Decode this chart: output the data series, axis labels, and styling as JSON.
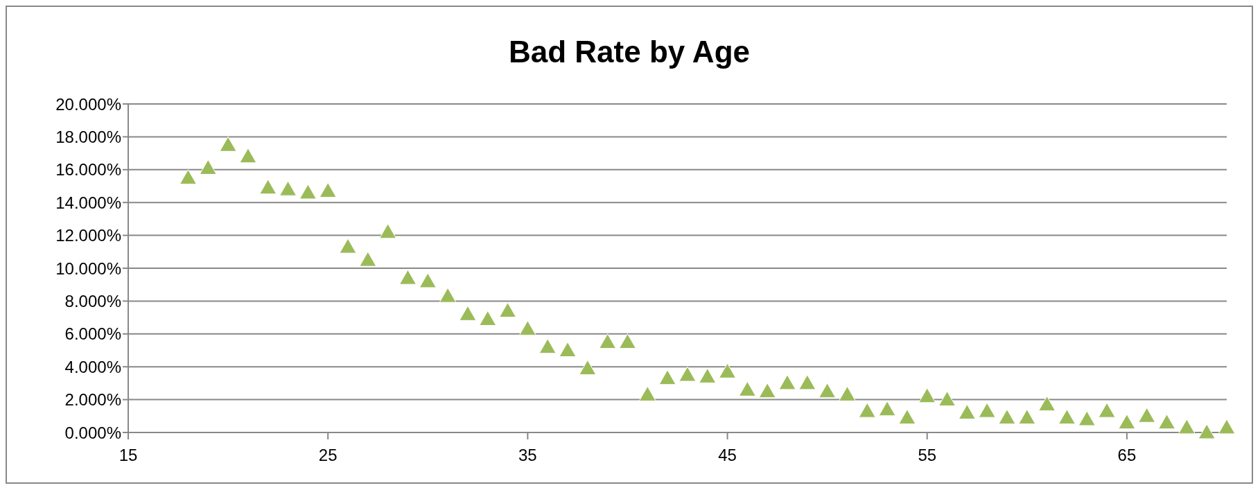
{
  "chart_data": {
    "type": "scatter",
    "title": "Bad Rate by Age",
    "x": [
      18,
      19,
      20,
      21,
      22,
      23,
      24,
      25,
      26,
      27,
      28,
      29,
      30,
      31,
      32,
      33,
      34,
      35,
      36,
      37,
      38,
      39,
      40,
      41,
      42,
      43,
      44,
      45,
      46,
      47,
      48,
      49,
      50,
      51,
      52,
      53,
      54,
      55,
      56,
      57,
      58,
      59,
      60,
      61,
      62,
      63,
      64,
      65,
      66,
      67,
      68,
      69,
      70
    ],
    "series": [
      {
        "color": "#9bbb59",
        "values": [
          15.5,
          16.1,
          17.5,
          16.8,
          14.9,
          14.8,
          14.6,
          14.7,
          11.3,
          10.5,
          12.2,
          9.4,
          9.2,
          8.3,
          7.2,
          6.9,
          7.4,
          6.3,
          5.2,
          5.0,
          3.9,
          5.5,
          5.5,
          2.3,
          3.3,
          3.5,
          3.4,
          3.7,
          2.6,
          2.5,
          3.0,
          3.0,
          2.5,
          2.3,
          1.3,
          1.4,
          0.9,
          2.2,
          2.0,
          1.2,
          1.3,
          0.9,
          0.9,
          1.7,
          0.9,
          0.8,
          1.3,
          0.6,
          1.0,
          0.6,
          0.3,
          0.0,
          0.3
        ]
      }
    ],
    "xlim": [
      15,
      70
    ],
    "xticks": [
      15,
      25,
      35,
      45,
      55,
      65
    ],
    "ylim": [
      0,
      20
    ],
    "yticks": [
      {
        "value": 0,
        "label": "0.000%"
      },
      {
        "value": 2,
        "label": "2.000%"
      },
      {
        "value": 4,
        "label": "4.000%"
      },
      {
        "value": 6,
        "label": "6.000%"
      },
      {
        "value": 8,
        "label": "8.000%"
      },
      {
        "value": 10,
        "label": "10.000%"
      },
      {
        "value": 12,
        "label": "12.000%"
      },
      {
        "value": 14,
        "label": "14.000%"
      },
      {
        "value": 16,
        "label": "16.000%"
      },
      {
        "value": 18,
        "label": "18.000%"
      },
      {
        "value": 20,
        "label": "20.000%"
      }
    ],
    "grid": "y",
    "marker": "triangle",
    "legend": false
  }
}
